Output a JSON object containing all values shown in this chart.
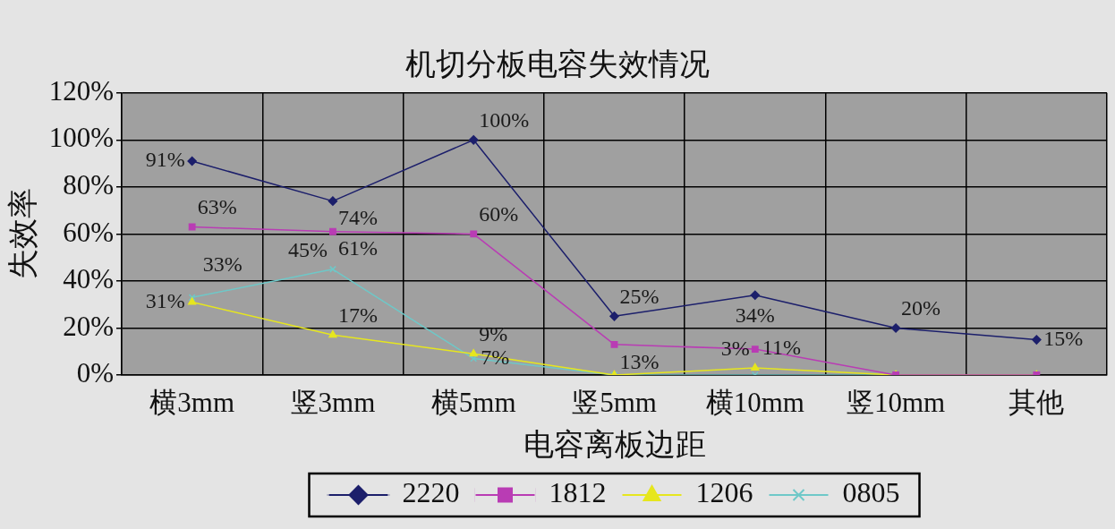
{
  "chart_data": {
    "type": "line",
    "title": "机切分板电容失效情况",
    "xlabel": "电容离板边距",
    "ylabel": "失效率",
    "categories": [
      "横3mm",
      "竖3mm",
      "横5mm",
      "竖5mm",
      "横10mm",
      "竖10mm",
      "其他"
    ],
    "series": [
      {
        "name": "2220",
        "color": "#1c1f6b",
        "marker": "diamond",
        "values": [
          91,
          74,
          100,
          25,
          34,
          20,
          15
        ],
        "value_labels": [
          "91%",
          "74%",
          "100%",
          "25%",
          "34%",
          "20%",
          "15%"
        ]
      },
      {
        "name": "1812",
        "color": "#b93cb4",
        "marker": "square",
        "values": [
          63,
          61,
          60,
          13,
          11,
          0,
          0
        ],
        "value_labels": [
          "63%",
          "61%",
          "60%",
          "13%",
          "11%",
          null,
          null
        ]
      },
      {
        "name": "1206",
        "color": "#e6e61e",
        "marker": "triangle",
        "values": [
          31,
          17,
          9,
          0,
          3,
          0,
          0
        ],
        "value_labels": [
          "31%",
          "17%",
          "9%",
          null,
          "3%",
          null,
          null
        ]
      },
      {
        "name": "0805",
        "color": "#6ec8c8",
        "marker": "cross",
        "values": [
          33,
          45,
          7,
          0,
          0,
          0,
          0
        ],
        "value_labels": [
          "33%",
          "45%",
          "7%",
          null,
          null,
          null,
          null
        ]
      }
    ],
    "ylim": [
      0,
      120
    ],
    "yticks": [
      {
        "value": 0,
        "label": "0%"
      },
      {
        "value": 20,
        "label": "20%"
      },
      {
        "value": 40,
        "label": "40%"
      },
      {
        "value": 60,
        "label": "60%"
      },
      {
        "value": 80,
        "label": "80%"
      },
      {
        "value": 100,
        "label": "100%"
      },
      {
        "value": 120,
        "label": "120%"
      }
    ],
    "grid": true,
    "legend": "bottom"
  }
}
